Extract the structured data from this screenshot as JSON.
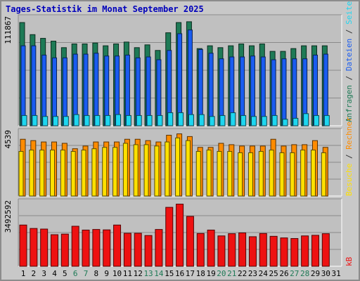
{
  "title": "Tages-Statistik im Monat September 2025",
  "colors": {
    "background": "#c0c0c0",
    "title": "#0000bb",
    "anfragen": "#1e7a56",
    "dateien": "#1a5cf0",
    "seiten": "#1ed6f0",
    "besuche": "#ffe000",
    "rechner": "#ff8c00",
    "kb": "#ee1111",
    "weekend_label": "#1e7a56"
  },
  "chart_data": [
    {
      "type": "bar",
      "series": [
        {
          "name": "Anfragen",
          "values": [
            111000,
            98000,
            94000,
            91000,
            84000,
            88000,
            88000,
            89000,
            86000,
            88000,
            90000,
            84000,
            87000,
            81000,
            100000,
            111000,
            111867,
            83000,
            86000,
            84000,
            86000,
            88000,
            86000,
            88000,
            80000,
            80000,
            83000,
            86000,
            86000,
            86000
          ]
        },
        {
          "name": "Dateien",
          "values": [
            86000,
            86000,
            76000,
            73000,
            73000,
            77000,
            77000,
            78000,
            75000,
            75000,
            76000,
            73000,
            74000,
            71000,
            81000,
            99000,
            103000,
            82000,
            78000,
            72000,
            74000,
            74000,
            75000,
            74000,
            71000,
            72000,
            72000,
            72000,
            76000,
            77000
          ]
        },
        {
          "name": "Seiten",
          "values": [
            11000,
            11000,
            10000,
            10000,
            10000,
            12000,
            11000,
            11000,
            11000,
            12000,
            11000,
            11000,
            11000,
            11000,
            14000,
            14000,
            12000,
            12000,
            10000,
            11000,
            14000,
            11000,
            10000,
            10000,
            11000,
            7000,
            8000,
            13000,
            11000,
            11000
          ]
        }
      ],
      "ylabel_ticks": [
        "111867"
      ]
    },
    {
      "type": "bar",
      "series": [
        {
          "name": "Rechner",
          "values": [
            4200,
            4100,
            4000,
            4000,
            3900,
            3500,
            3700,
            4000,
            4000,
            4000,
            4200,
            4200,
            4100,
            4000,
            4500,
            4600,
            4400,
            3600,
            3600,
            3900,
            3800,
            3700,
            3700,
            3700,
            4200,
            3700,
            3800,
            3800,
            4100,
            3600
          ]
        },
        {
          "name": "Besuche",
          "values": [
            3300,
            3400,
            3400,
            3400,
            3400,
            3300,
            3400,
            3500,
            3600,
            3600,
            3900,
            3800,
            3800,
            3700,
            4000,
            4300,
            4100,
            3300,
            3400,
            3300,
            3300,
            3200,
            3200,
            3300,
            3400,
            3200,
            3200,
            3400,
            3400,
            3200
          ]
        }
      ],
      "ylabel_ticks": [
        "4539"
      ]
    },
    {
      "type": "bar",
      "series": [
        {
          "name": "kB",
          "values": [
            2050000,
            1880000,
            1850000,
            1570000,
            1600000,
            1990000,
            1800000,
            1830000,
            1810000,
            2050000,
            1640000,
            1640000,
            1530000,
            1830000,
            2930000,
            3090000,
            2480000,
            1630000,
            1800000,
            1510000,
            1620000,
            1660000,
            1470000,
            1630000,
            1490000,
            1410000,
            1380000,
            1510000,
            1540000,
            1620000
          ]
        }
      ],
      "ylabel_ticks": [
        "3492592"
      ]
    }
  ],
  "days": [
    "1",
    "2",
    "3",
    "4",
    "5",
    "6",
    "7",
    "8",
    "9",
    "10",
    "11",
    "12",
    "13",
    "14",
    "15",
    "16",
    "17",
    "18",
    "19",
    "20",
    "21",
    "22",
    "23",
    "24",
    "25",
    "26",
    "27",
    "28",
    "29",
    "30",
    "31"
  ],
  "weekend_days": [
    6,
    7,
    13,
    14,
    20,
    21,
    27,
    28
  ],
  "right_labels": {
    "top": [
      {
        "text": "Anfragen",
        "color": "#1e7a56"
      },
      {
        "text": " / ",
        "color": "#333333"
      },
      {
        "text": "Dateien",
        "color": "#1a5cf0"
      },
      {
        "text": " / ",
        "color": "#333333"
      },
      {
        "text": "Seiten",
        "color": "#1ed6f0"
      },
      {
        "text": " / ",
        "color": "#333333"
      }
    ],
    "mid": [
      {
        "text": "Besuche",
        "color": "#ffe000"
      },
      {
        "text": " / ",
        "color": "#333333"
      },
      {
        "text": "Rechner",
        "color": "#ff8c00"
      }
    ],
    "bottom": [
      {
        "text": "kB",
        "color": "#ee1111"
      }
    ]
  }
}
